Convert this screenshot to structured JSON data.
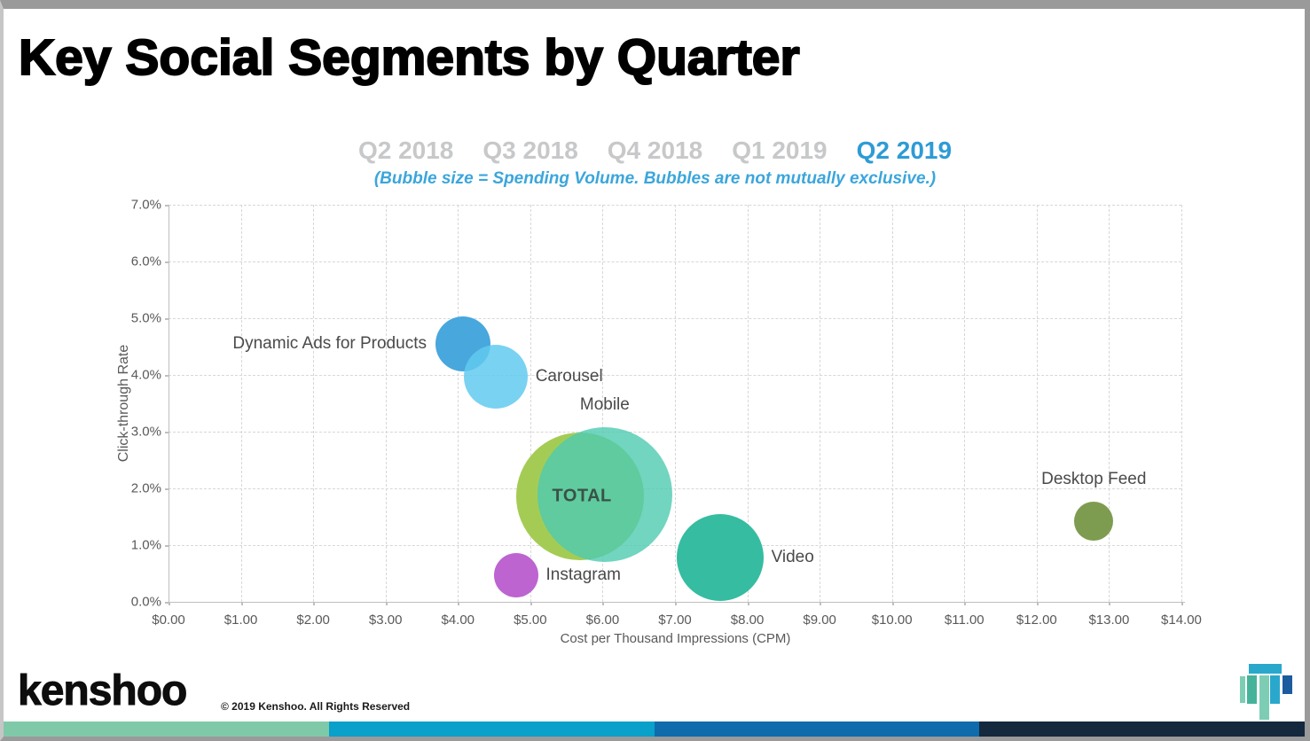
{
  "slide": {
    "title": "Key Social Segments by Quarter",
    "tabs": [
      {
        "label": "Q2 2018",
        "active": false
      },
      {
        "label": "Q3 2018",
        "active": false
      },
      {
        "label": "Q4 2018",
        "active": false
      },
      {
        "label": "Q1 2019",
        "active": false
      },
      {
        "label": "Q2 2019",
        "active": true
      }
    ],
    "subtitle": "(Bubble size = Spending Volume. Bubbles are not mutually exclusive.)",
    "active_tab_color": "#2e9bd5",
    "inactive_tab_color": "#c7c8ca",
    "subtitle_color": "#3ba6db"
  },
  "chart_data": {
    "type": "scatter",
    "subtype": "bubble",
    "title": "",
    "xlabel": "Cost per Thousand Impressions (CPM)",
    "ylabel": "Click-through Rate",
    "xlim": [
      0,
      14
    ],
    "ylim": [
      0,
      7
    ],
    "x_tick_labels": [
      "$0.00",
      "$1.00",
      "$2.00",
      "$3.00",
      "$4.00",
      "$5.00",
      "$6.00",
      "$7.00",
      "$8.00",
      "$9.00",
      "$10.00",
      "$11.00",
      "$12.00",
      "$13.00",
      "$14.00"
    ],
    "y_tick_labels": [
      "0.0%",
      "1.0%",
      "2.0%",
      "3.0%",
      "4.0%",
      "5.0%",
      "6.0%",
      "7.0%"
    ],
    "grid": "dashed",
    "legend": "none",
    "note": "bubble size = spending volume; x = CPM in dollars, y = click-through rate in percent",
    "series": [
      {
        "name": "total",
        "label": "TOTAL",
        "cpm": 5.69,
        "ctr": 1.86,
        "radius_px": 72,
        "color": "#a4cc55",
        "label_anchor": "center"
      },
      {
        "name": "mobile",
        "label": "Mobile",
        "cpm": 6.03,
        "ctr": 1.89,
        "radius_px": 76,
        "color": "rgba(77,203,176,0.8)",
        "label_anchor": "above"
      },
      {
        "name": "dynamic-ads",
        "label": "Dynamic Ads for Products",
        "cpm": 4.07,
        "ctr": 4.55,
        "radius_px": 31,
        "color": "rgba(62,162,219,0.95)",
        "label_anchor": "left"
      },
      {
        "name": "carousel",
        "label": "Carousel",
        "cpm": 4.52,
        "ctr": 3.97,
        "radius_px": 36,
        "color": "rgba(98,202,238,0.85)",
        "label_anchor": "right"
      },
      {
        "name": "video",
        "label": "Video",
        "cpm": 7.62,
        "ctr": 0.78,
        "radius_px": 49,
        "color": "#35bca1",
        "label_anchor": "right"
      },
      {
        "name": "instagram",
        "label": "Instagram",
        "cpm": 4.8,
        "ctr": 0.47,
        "radius_px": 25,
        "color": "#bd64d1",
        "label_anchor": "right"
      },
      {
        "name": "desktop-feed",
        "label": "Desktop Feed",
        "cpm": 12.79,
        "ctr": 1.42,
        "radius_px": 22,
        "color": "#7e9c50",
        "label_anchor": "above"
      }
    ]
  },
  "footer": {
    "logo_text": "kenshoo",
    "copyright": "© 2019 Kenshoo. All Rights Reserved",
    "bar_colors": [
      "#7fc9a9",
      "#09a0ca",
      "#0f6bac",
      "#14283e"
    ],
    "logo_mark_colors": {
      "top_block": "#29a8cc",
      "thin_mint_bar": "#7ccdb4",
      "teal_bar": "#45b39a",
      "tall_mint_bar": "#7ccdb4",
      "cyan_bar": "#29a8cc",
      "navy_block": "#1b5c9e"
    }
  }
}
